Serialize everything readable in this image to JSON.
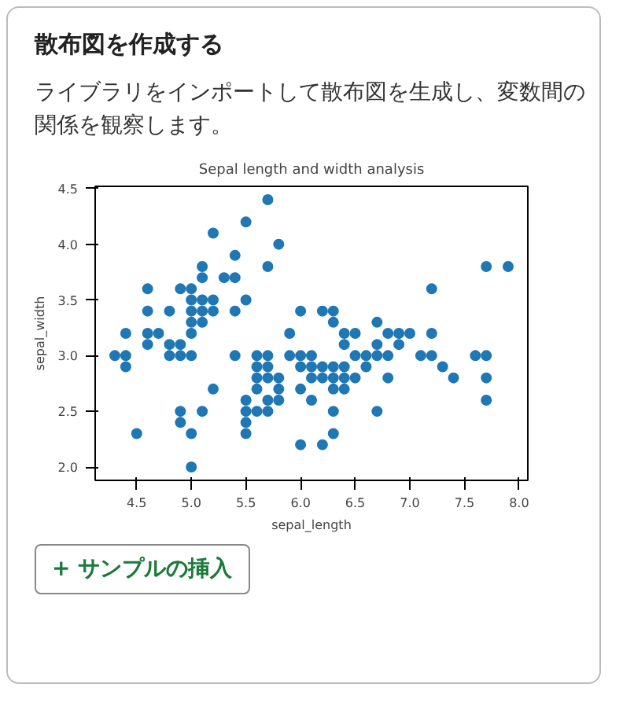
{
  "chart_data": {
    "type": "scatter",
    "title": "Sepal length and width analysis",
    "xlabel": "sepal_length",
    "ylabel": "sepal_width",
    "annotations": [
      "散布図を作成する",
      "ライブラリをインポートして散布図を生成し、変数間の関係を観察します。",
      "+ サンプルの挿入"
    ],
    "x": [
      4.3,
      4.4,
      4.4,
      4.4,
      4.5,
      4.6,
      4.6,
      4.6,
      4.6,
      4.7,
      4.8,
      4.8,
      4.8,
      4.9,
      4.9,
      4.9,
      4.9,
      4.9,
      5.0,
      5.0,
      5.0,
      5.0,
      5.0,
      5.0,
      5.0,
      5.0,
      5.1,
      5.1,
      5.1,
      5.1,
      5.1,
      5.1,
      5.2,
      5.2,
      5.2,
      5.2,
      5.3,
      5.4,
      5.4,
      5.4,
      5.4,
      5.5,
      5.5,
      5.5,
      5.5,
      5.5,
      5.5,
      5.6,
      5.6,
      5.6,
      5.6,
      5.6,
      5.7,
      5.7,
      5.7,
      5.7,
      5.7,
      5.7,
      5.7,
      5.8,
      5.8,
      5.8,
      5.8,
      5.9,
      5.9,
      6.0,
      6.0,
      6.0,
      6.0,
      6.0,
      6.1,
      6.1,
      6.1,
      6.1,
      6.2,
      6.2,
      6.2,
      6.2,
      6.3,
      6.3,
      6.3,
      6.3,
      6.3,
      6.3,
      6.3,
      6.4,
      6.4,
      6.4,
      6.4,
      6.4,
      6.5,
      6.5,
      6.5,
      6.6,
      6.6,
      6.7,
      6.7,
      6.7,
      6.7,
      6.8,
      6.8,
      6.8,
      6.9,
      6.9,
      7.0,
      7.1,
      7.2,
      7.2,
      7.2,
      7.3,
      7.4,
      7.6,
      7.7,
      7.7,
      7.7,
      7.7,
      7.9
    ],
    "values": [
      3.0,
      2.9,
      3.0,
      3.2,
      2.3,
      3.1,
      3.4,
      3.6,
      3.2,
      3.2,
      3.4,
      3.0,
      3.1,
      3.0,
      3.1,
      3.6,
      2.4,
      2.5,
      3.6,
      3.4,
      3.0,
      3.2,
      3.5,
      3.3,
      2.0,
      2.3,
      3.5,
      3.8,
      3.7,
      3.3,
      3.4,
      2.5,
      3.5,
      3.4,
      4.1,
      2.7,
      3.7,
      3.9,
      3.7,
      3.4,
      3.0,
      4.2,
      3.5,
      2.3,
      2.4,
      2.5,
      2.6,
      2.9,
      3.0,
      2.5,
      2.7,
      2.8,
      4.4,
      3.8,
      2.8,
      2.6,
      3.0,
      2.9,
      2.5,
      4.0,
      2.7,
      2.6,
      2.8,
      3.0,
      3.2,
      2.2,
      2.9,
      2.7,
      3.4,
      3.0,
      2.9,
      2.8,
      3.0,
      2.6,
      2.2,
      2.9,
      2.8,
      3.4,
      3.3,
      2.5,
      2.3,
      2.9,
      2.7,
      2.8,
      3.4,
      3.2,
      2.9,
      2.7,
      2.8,
      3.1,
      2.8,
      3.0,
      3.2,
      2.9,
      3.0,
      3.1,
      3.0,
      2.5,
      3.3,
      2.8,
      3.0,
      3.2,
      3.1,
      3.2,
      3.2,
      3.0,
      3.6,
      3.2,
      3.0,
      2.9,
      2.8,
      3.0,
      3.8,
      2.6,
      2.8,
      3.0,
      3.8
    ],
    "color": "#1f77b4",
    "marker": "circle",
    "xlim": [
      4.12,
      8.08
    ],
    "ylim": [
      1.88,
      4.52
    ],
    "xticks": [
      4.5,
      {
        "value": 5.0,
        "label": "5.0"
      },
      5.5,
      {
        "value": 6.0,
        "label": "6.0"
      },
      6.5,
      {
        "value": 7.0,
        "label": "7.0"
      },
      7.5,
      {
        "value": 8.0,
        "label": "8.0"
      }
    ],
    "yticks": [
      {
        "value": 2.0,
        "label": "2.0"
      },
      2.5,
      {
        "value": 3.0,
        "label": "3.0"
      },
      3.5,
      {
        "value": 4.0,
        "label": "4.0"
      },
      4.5
    ]
  }
}
